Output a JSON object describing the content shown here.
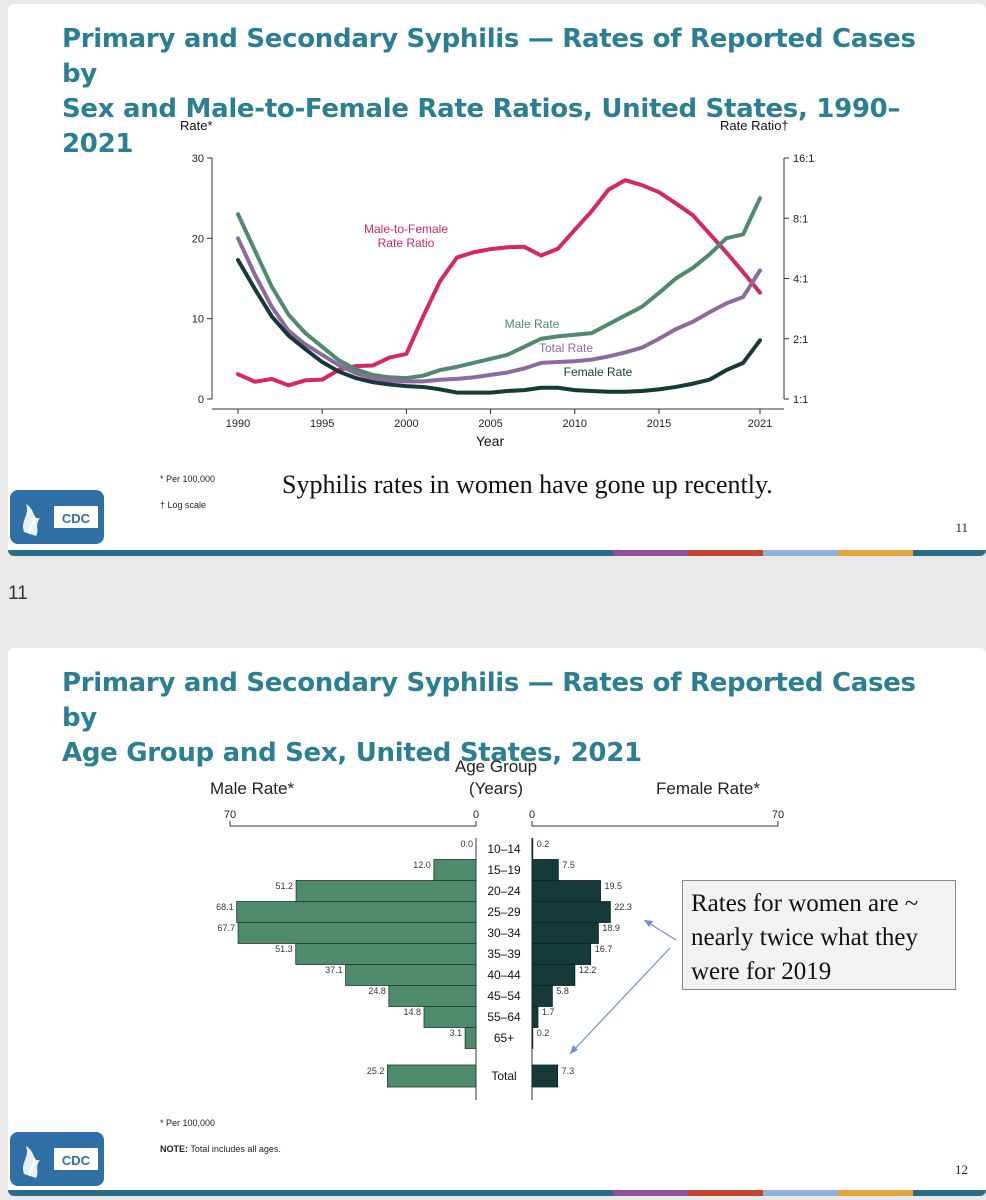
{
  "slides": [
    {
      "title_line1": "Primary and Secondary Syphilis — Rates of Reported Cases by",
      "title_line2": "Sex and Male-to-Female Rate Ratios, United States, 1990–2021",
      "footnote1": "* Per 100,000",
      "footnote2": "† Log scale",
      "comment": "Syphilis rates in women have gone up recently.",
      "page_number": "11",
      "logo_text": "CDC"
    },
    {
      "title_line1": "Primary and Secondary Syphilis — Rates of Reported Cases by",
      "title_line2": "Age Group and Sex, United States, 2021",
      "footnote1": "* Per 100,000",
      "note_label": "NOTE:",
      "note_text": " Total includes all ages.",
      "callout": "Rates for women are ~ nearly twice what they were for 2019",
      "page_number": "12",
      "logo_text": "CDC"
    }
  ],
  "between_label": "11",
  "colors": {
    "title": "#2a7f93",
    "male": "#4e8a6c",
    "female": "#153a37",
    "total": "#8e6a9c",
    "ratio": "#d6285e",
    "cdc_blue": "#2f6fa3",
    "band": [
      "#2a6b86",
      "#2a6b86",
      "#2a6b86",
      "#8e4f9c",
      "#c0452e",
      "#8eb3d6",
      "#e3a43a",
      "#2a6b86"
    ]
  },
  "chart_data": [
    {
      "type": "line",
      "title": "Primary and Secondary Syphilis — Rates of Reported Cases by Sex and Male-to-Female Rate Ratios, United States, 1990–2021",
      "xlabel": "Year",
      "ylabel": "Rate*",
      "y2label": "Rate Ratio†",
      "xlim": [
        1990,
        2021
      ],
      "ylim": [
        0,
        30
      ],
      "x_ticks": [
        1990,
        1995,
        2000,
        2005,
        2010,
        2015,
        2021
      ],
      "y_ticks": [
        0,
        10,
        20,
        30
      ],
      "y2_ticks": [
        "1:1",
        "2:1",
        "4:1",
        "8:1",
        "16:1"
      ],
      "y2_tick_values": [
        1,
        2,
        4,
        8,
        16
      ],
      "x": [
        1990,
        1991,
        1992,
        1993,
        1994,
        1995,
        1996,
        1997,
        1998,
        1999,
        2000,
        2001,
        2002,
        2003,
        2004,
        2005,
        2006,
        2007,
        2008,
        2009,
        2010,
        2011,
        2012,
        2013,
        2014,
        2015,
        2016,
        2017,
        2018,
        2019,
        2020,
        2021
      ],
      "series": [
        {
          "name": "Male Rate",
          "label": "Male Rate",
          "axis": "left",
          "values": [
            23.0,
            18.5,
            14.0,
            10.5,
            8.2,
            6.5,
            4.8,
            3.7,
            3.0,
            2.7,
            2.6,
            2.9,
            3.6,
            4.0,
            4.5,
            5.0,
            5.5,
            6.5,
            7.5,
            7.8,
            8.0,
            8.2,
            9.3,
            10.4,
            11.5,
            13.2,
            15.0,
            16.3,
            18.0,
            20.0,
            20.5,
            25.0
          ]
        },
        {
          "name": "Total Rate",
          "label": "Total Rate",
          "axis": "left",
          "values": [
            20.0,
            15.5,
            11.5,
            8.5,
            6.8,
            5.5,
            4.2,
            3.2,
            2.6,
            2.3,
            2.2,
            2.2,
            2.4,
            2.5,
            2.7,
            3.0,
            3.3,
            3.8,
            4.5,
            4.6,
            4.7,
            4.9,
            5.3,
            5.8,
            6.4,
            7.5,
            8.7,
            9.6,
            10.8,
            11.9,
            12.7,
            16.0
          ]
        },
        {
          "name": "Female Rate",
          "label": "Female Rate",
          "axis": "left",
          "values": [
            17.3,
            13.7,
            10.3,
            7.9,
            6.2,
            4.6,
            3.4,
            2.6,
            2.1,
            1.8,
            1.6,
            1.5,
            1.2,
            0.8,
            0.8,
            0.8,
            1.0,
            1.1,
            1.4,
            1.4,
            1.1,
            1.0,
            0.9,
            0.9,
            1.0,
            1.2,
            1.5,
            1.9,
            2.4,
            3.6,
            4.5,
            7.3
          ]
        },
        {
          "name": "Male-to-Female Rate Ratio",
          "label": "Male-to-Female\nRate Ratio",
          "axis": "right",
          "values": [
            1.33,
            1.22,
            1.26,
            1.17,
            1.24,
            1.25,
            1.4,
            1.46,
            1.47,
            1.61,
            1.68,
            2.59,
            3.88,
            5.09,
            5.41,
            5.61,
            5.73,
            5.76,
            5.21,
            5.63,
            7.0,
            8.67,
            11.1,
            12.4,
            11.7,
            10.8,
            9.5,
            8.3,
            6.7,
            5.4,
            4.3,
            3.4
          ]
        }
      ]
    },
    {
      "type": "bar",
      "orientation": "horizontal-butterfly",
      "title": "Primary and Secondary Syphilis — Rates of Reported Cases by Age Group and Sex, United States, 2021",
      "center_label": "Age Group\n(Years)",
      "left_label": "Male Rate*",
      "right_label": "Female Rate*",
      "xlim": [
        0,
        70
      ],
      "left_axis_ticks": [
        "70",
        "0"
      ],
      "right_axis_ticks": [
        "0",
        "70"
      ],
      "categories": [
        "10–14",
        "15–19",
        "20–24",
        "25–29",
        "30–34",
        "35–39",
        "40–44",
        "45–54",
        "55–64",
        "65+",
        "Total"
      ],
      "series": [
        {
          "name": "Male Rate",
          "values": [
            0.0,
            12.0,
            51.2,
            68.1,
            67.7,
            51.3,
            37.1,
            24.8,
            14.8,
            3.1,
            25.2
          ]
        },
        {
          "name": "Female Rate",
          "values": [
            0.2,
            7.5,
            19.5,
            22.3,
            18.9,
            16.7,
            12.2,
            5.8,
            1.7,
            0.2,
            7.3
          ]
        }
      ]
    }
  ]
}
